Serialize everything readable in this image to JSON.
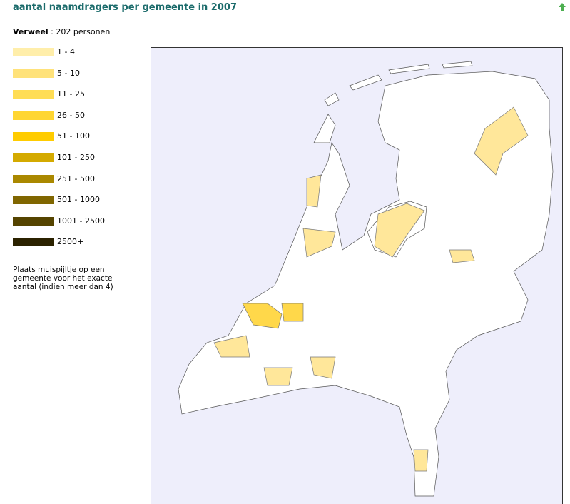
{
  "title": "aantal naamdragers per gemeente in 2007",
  "summary": {
    "name": "Verweel",
    "count_text": ": 202 personen"
  },
  "legend": [
    {
      "label": "1 - 4",
      "color": "#ffeeaa"
    },
    {
      "label": "5 - 10",
      "color": "#ffe27a"
    },
    {
      "label": "11 - 25",
      "color": "#ffdd55"
    },
    {
      "label": "26 - 50",
      "color": "#ffd633"
    },
    {
      "label": "51 - 100",
      "color": "#ffcc00"
    },
    {
      "label": "101 - 250",
      "color": "#d4aa00"
    },
    {
      "label": "251 - 500",
      "color": "#aa8800"
    },
    {
      "label": "501 - 1000",
      "color": "#806600"
    },
    {
      "label": "1001 - 2500",
      "color": "#554400"
    },
    {
      "label": "2500+",
      "color": "#2b2200"
    }
  ],
  "note": [
    "Plaats muispijltje op een",
    "gemeente voor het exacte",
    "aantal (indien meer dan 4)"
  ]
}
